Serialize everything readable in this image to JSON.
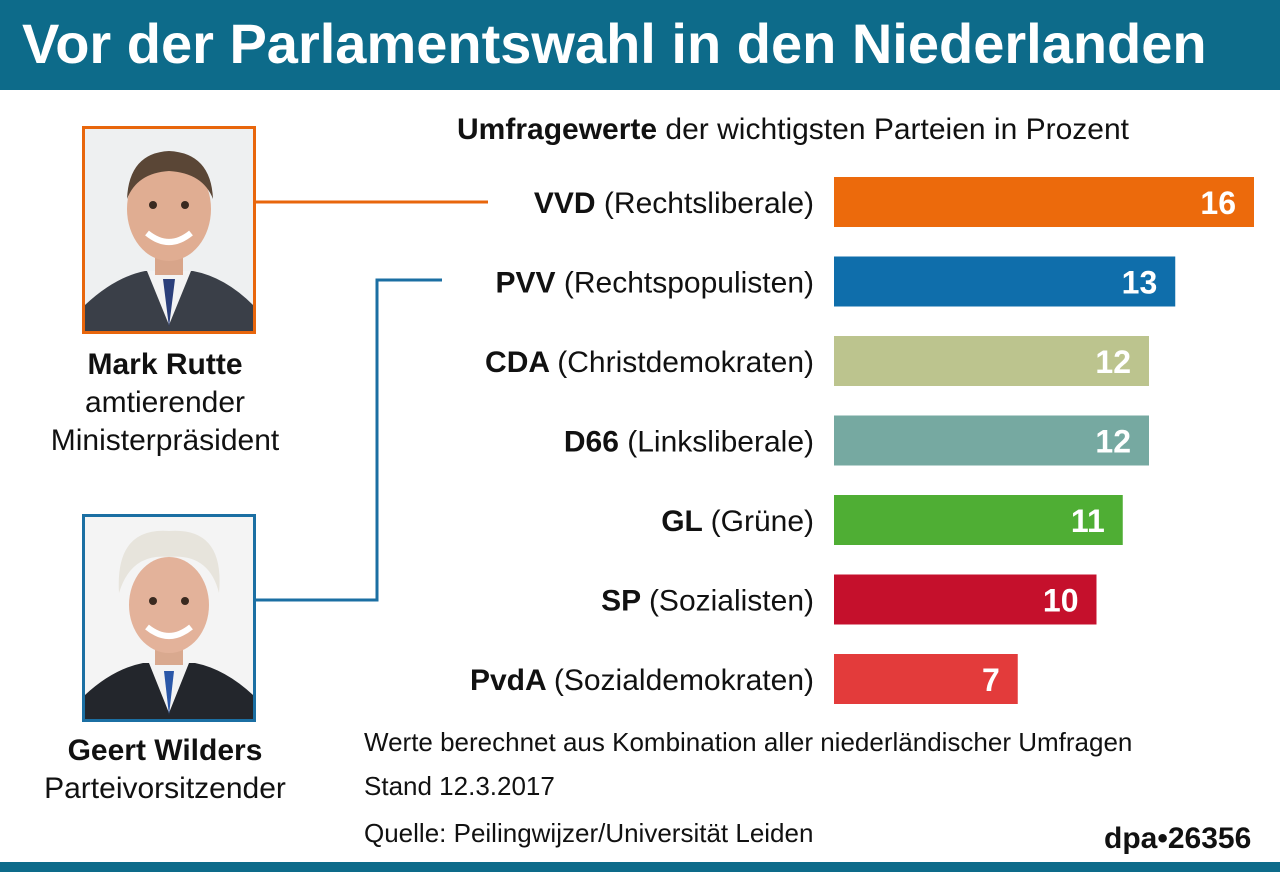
{
  "header": {
    "title": "Vor der Parlamentswahl in den Niederlanden"
  },
  "subtitle": {
    "bold": "Umfragewerte",
    "rest": " der wichtigsten Parteien in Prozent"
  },
  "people": [
    {
      "name": "Mark Rutte",
      "role_line1": "amtierender",
      "role_line2": "Ministerpräsident",
      "frame_color": "#e8660c"
    },
    {
      "name": "Geert Wilders",
      "role_line1": "Parteivorsitzender",
      "frame_color": "#1b6fa3"
    }
  ],
  "chart_data": {
    "type": "bar",
    "orientation": "horizontal",
    "title": "Umfragewerte der wichtigsten Parteien in Prozent",
    "categories": [
      {
        "abbr": "VVD",
        "full": "(Rechtsliberale)"
      },
      {
        "abbr": "PVV",
        "full": "(Rechtspopulisten)"
      },
      {
        "abbr": "CDA",
        "full": "(Christdemokraten)"
      },
      {
        "abbr": "D66",
        "full": "(Linksliberale)"
      },
      {
        "abbr": "GL",
        "full": "(Grüne)"
      },
      {
        "abbr": "SP",
        "full": "(Sozialisten)"
      },
      {
        "abbr": "PvdA",
        "full": "(Sozialdemokraten)"
      }
    ],
    "values": [
      16,
      13,
      12,
      12,
      11,
      10,
      7
    ],
    "colors": [
      "#ec6a0c",
      "#0f6eab",
      "#bcc48e",
      "#76a9a1",
      "#4fae34",
      "#c5102c",
      "#e33b3b"
    ],
    "xlim": [
      0,
      16
    ],
    "grid": false,
    "legend": "none"
  },
  "notes": [
    "Werte berechnet aus Kombination aller niederländischer Umfragen",
    "Stand 12.3.2017",
    "Quelle: Peilingwijzer/Universität Leiden"
  ],
  "credit": "dpa•26356"
}
